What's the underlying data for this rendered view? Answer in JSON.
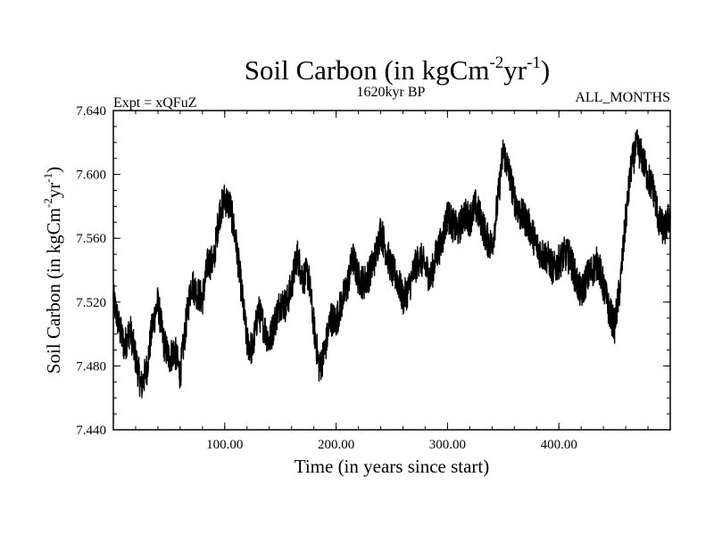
{
  "chart_data": {
    "type": "line",
    "title": "Soil Carbon (in kgCm",
    "title_sup1": "-2",
    "title_mid": "yr",
    "title_sup2": "-1",
    "title_end": ")",
    "subtitle_left": "Expt = xQFuZ",
    "subtitle_center": "1620kyr BP",
    "subtitle_right": "ALL_MONTHS",
    "xlabel": "Time (in years since start)",
    "ylabel": "Soil Carbon (in kgCm",
    "ylabel_sup1": "-2",
    "ylabel_mid": "yr",
    "ylabel_sup2": "-1",
    "ylabel_end": ")",
    "xlim": [
      0,
      500
    ],
    "ylim": [
      7.44,
      7.64
    ],
    "x_ticks": [
      100,
      200,
      300,
      400
    ],
    "x_tick_labels": [
      "100.00",
      "200.00",
      "300.00",
      "400.00"
    ],
    "y_ticks": [
      7.44,
      7.48,
      7.52,
      7.56,
      7.6,
      7.64
    ],
    "y_tick_labels": [
      "7.440",
      "7.480",
      "7.520",
      "7.560",
      "7.600",
      "7.640"
    ],
    "series": [
      {
        "name": "Soil Carbon",
        "color": "#000000",
        "noise_amplitude": 0.011,
        "x": [
          0,
          5,
          10,
          15,
          20,
          25,
          30,
          35,
          40,
          45,
          50,
          55,
          60,
          65,
          70,
          75,
          80,
          85,
          90,
          95,
          100,
          105,
          110,
          115,
          120,
          125,
          130,
          135,
          140,
          145,
          150,
          155,
          160,
          165,
          170,
          175,
          180,
          185,
          190,
          195,
          200,
          205,
          210,
          215,
          220,
          225,
          230,
          235,
          240,
          245,
          250,
          255,
          260,
          265,
          270,
          275,
          280,
          285,
          290,
          295,
          300,
          305,
          310,
          315,
          320,
          325,
          330,
          335,
          340,
          345,
          350,
          355,
          360,
          365,
          370,
          375,
          380,
          385,
          390,
          395,
          400,
          405,
          410,
          415,
          420,
          425,
          430,
          435,
          440,
          445,
          450,
          455,
          460,
          465,
          470,
          475,
          480,
          485,
          490,
          495,
          500
        ],
        "values": [
          7.522,
          7.505,
          7.492,
          7.503,
          7.485,
          7.467,
          7.478,
          7.505,
          7.52,
          7.495,
          7.485,
          7.49,
          7.475,
          7.505,
          7.532,
          7.526,
          7.522,
          7.545,
          7.545,
          7.575,
          7.585,
          7.58,
          7.558,
          7.528,
          7.495,
          7.49,
          7.515,
          7.505,
          7.495,
          7.508,
          7.52,
          7.518,
          7.53,
          7.55,
          7.535,
          7.538,
          7.505,
          7.478,
          7.49,
          7.51,
          7.508,
          7.52,
          7.53,
          7.548,
          7.535,
          7.532,
          7.538,
          7.548,
          7.565,
          7.552,
          7.54,
          7.535,
          7.522,
          7.528,
          7.54,
          7.548,
          7.542,
          7.535,
          7.55,
          7.558,
          7.575,
          7.568,
          7.565,
          7.575,
          7.572,
          7.58,
          7.572,
          7.56,
          7.555,
          7.582,
          7.615,
          7.602,
          7.585,
          7.575,
          7.572,
          7.565,
          7.555,
          7.55,
          7.548,
          7.54,
          7.545,
          7.55,
          7.548,
          7.535,
          7.525,
          7.535,
          7.54,
          7.545,
          7.53,
          7.515,
          7.505,
          7.53,
          7.572,
          7.605,
          7.618,
          7.61,
          7.598,
          7.59,
          7.57,
          7.565,
          7.575
        ]
      }
    ]
  }
}
